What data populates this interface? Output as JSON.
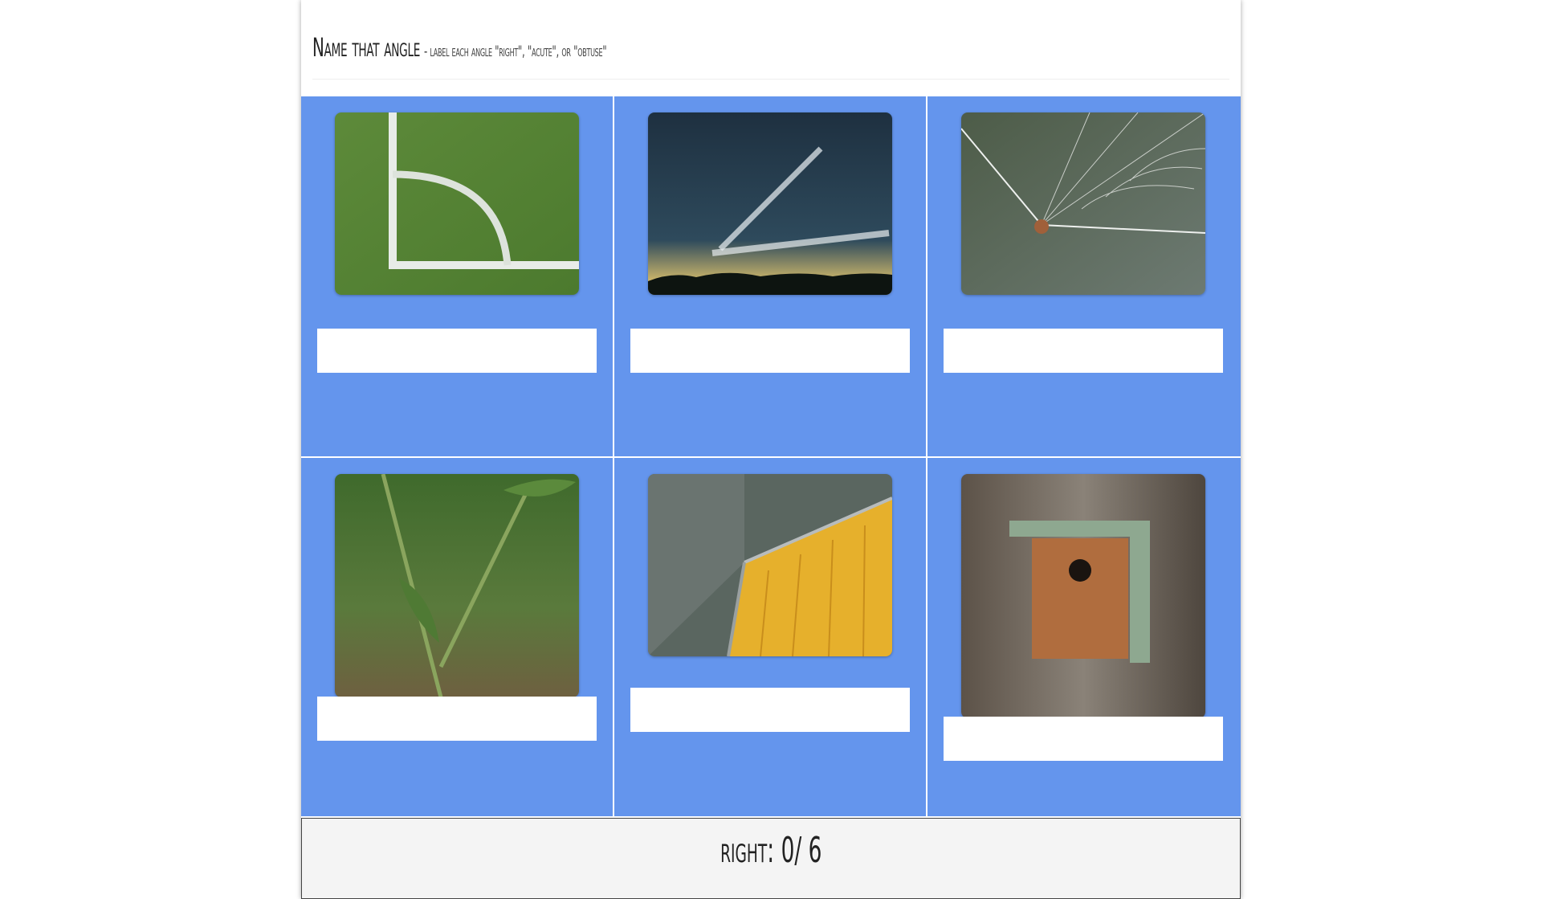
{
  "header": {
    "title": "Name that angle",
    "subtitle": "- label each angle \"right\", \"acute\", or \"obtuse\""
  },
  "cards": [
    {
      "subject": "field-corner-photo",
      "answer": ""
    },
    {
      "subject": "contrails-photo",
      "answer": ""
    },
    {
      "subject": "spider-web-photo",
      "answer": ""
    },
    {
      "subject": "plant-stem-photo",
      "answer": ""
    },
    {
      "subject": "gym-floor-corner-photo",
      "answer": ""
    },
    {
      "subject": "birdhouse-photo",
      "answer": ""
    }
  ],
  "score": {
    "text": "right: 0/ 6"
  },
  "colors": {
    "card_background": "#6495ed",
    "score_background": "#f4f4f4"
  }
}
